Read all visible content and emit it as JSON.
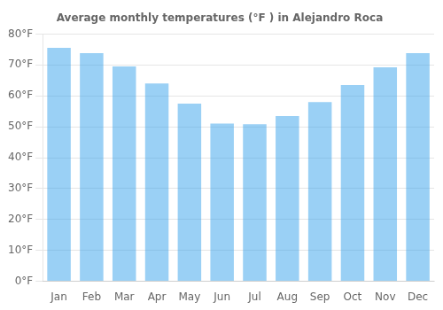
{
  "chart_data": {
    "type": "bar",
    "title": "Average monthly temperatures (°F ) in Alejandro Roca",
    "categories": [
      "Jan",
      "Feb",
      "Mar",
      "Apr",
      "May",
      "Jun",
      "Jul",
      "Aug",
      "Sep",
      "Oct",
      "Nov",
      "Dec"
    ],
    "values": [
      75.5,
      73.8,
      69.5,
      64.0,
      57.5,
      51.0,
      50.8,
      53.5,
      58.0,
      63.5,
      69.2,
      73.8
    ],
    "ylim": [
      0,
      80
    ],
    "yticks": [
      {
        "value": 0,
        "label": "0°F"
      },
      {
        "value": 10,
        "label": "10°F"
      },
      {
        "value": 20,
        "label": "20°F"
      },
      {
        "value": 30,
        "label": "30°F"
      },
      {
        "value": 40,
        "label": "40°F"
      },
      {
        "value": 50,
        "label": "50°F"
      },
      {
        "value": 60,
        "label": "60°F"
      },
      {
        "value": 70,
        "label": "70°F"
      },
      {
        "value": 80,
        "label": "80°F"
      }
    ],
    "grid": true
  }
}
